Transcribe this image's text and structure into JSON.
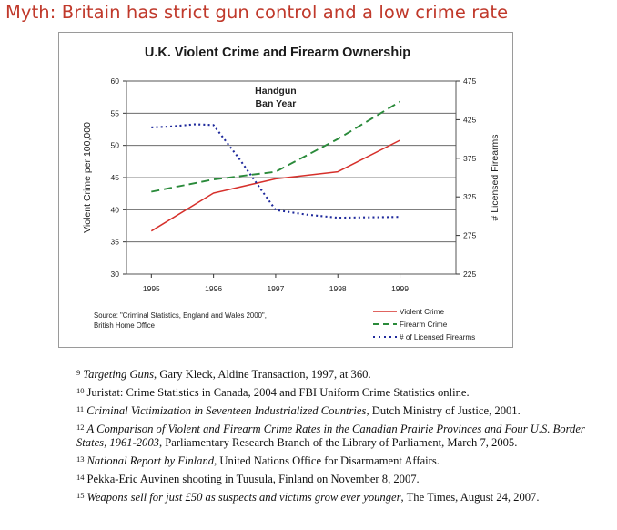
{
  "headline": "Myth: Britain has strict gun control and a low crime rate",
  "chart_data": {
    "type": "line",
    "title": "U.K. Violent Crime and Firearm Ownership",
    "categories": [
      "1995",
      "1996",
      "1997",
      "1998",
      "1999"
    ],
    "x": [
      1995,
      1996,
      1997,
      1998,
      1999
    ],
    "ylabel": "Violent Crime per 100,000",
    "y2label": "# Licensed Firearms",
    "ylim": [
      30,
      60
    ],
    "y2lim": [
      225,
      475
    ],
    "yticks": [
      30,
      35,
      40,
      45,
      50,
      55,
      60
    ],
    "y2ticks": [
      225,
      275,
      325,
      375,
      425,
      475
    ],
    "annotation": "Handgun\nBan Year",
    "annotation_x": 1997,
    "source": "Source: \"Criminal Statistics, England and Wales 2000\",\nBritish Home Office",
    "legend_position": "bottom-right",
    "grid": true,
    "series": [
      {
        "name": "Violent Crime",
        "axis": "left",
        "color": "#d6302b",
        "style": "solid",
        "x": [
          1995,
          1996,
          1997,
          1998,
          1999
        ],
        "values": [
          36.7,
          42.6,
          44.8,
          45.9,
          50.8
        ]
      },
      {
        "name": "Firearm Crime",
        "axis": "left",
        "color": "#2a8a3a",
        "style": "dashed",
        "x": [
          1995,
          1996,
          1997,
          1998,
          1999
        ],
        "values": [
          42.8,
          44.7,
          45.9,
          51.0,
          56.8
        ]
      },
      {
        "name": "# of Licensed Firearms",
        "axis": "right",
        "color": "#1f2a9c",
        "style": "dotted",
        "x": [
          1995,
          1995.3,
          1995.7,
          1996,
          1996.4,
          1997,
          1997.5,
          1998,
          1999
        ],
        "values": [
          415,
          416,
          419,
          418,
          376,
          308,
          302,
          298,
          299
        ]
      }
    ]
  },
  "footnotes": [
    {
      "num": "9",
      "html": "<i>Targeting Guns</i>, Gary Kleck, Aldine Transaction, 1997, at 360."
    },
    {
      "num": "10",
      "html": "Juristat: Crime Statistics in Canada, 2004 and FBI Uniform Crime Statistics online."
    },
    {
      "num": "11",
      "html": "<i>Criminal Victimization in Seventeen Industrialized Countries</i>, Dutch Ministry of Justice, 2001."
    },
    {
      "num": "12",
      "html": "<i>A Comparison of Violent and Firearm Crime Rates in the Canadian Prairie Provinces and Four U.S. Border States, 1961-2003</i>, Parliamentary Research Branch of the Library of Parliament, March 7, 2005."
    },
    {
      "num": "13",
      "html": "<i>National Report by Finland</i>, United Nations Office for Disarmament Affairs."
    },
    {
      "num": "14",
      "html": "Pekka-Eric Auvinen shooting in Tuusula, Finland on November 8, 2007."
    },
    {
      "num": "15",
      "html": "<i>Weapons sell for just £50 as suspects and victims grow ever younger</i>, The Times, August 24, 2007."
    }
  ]
}
